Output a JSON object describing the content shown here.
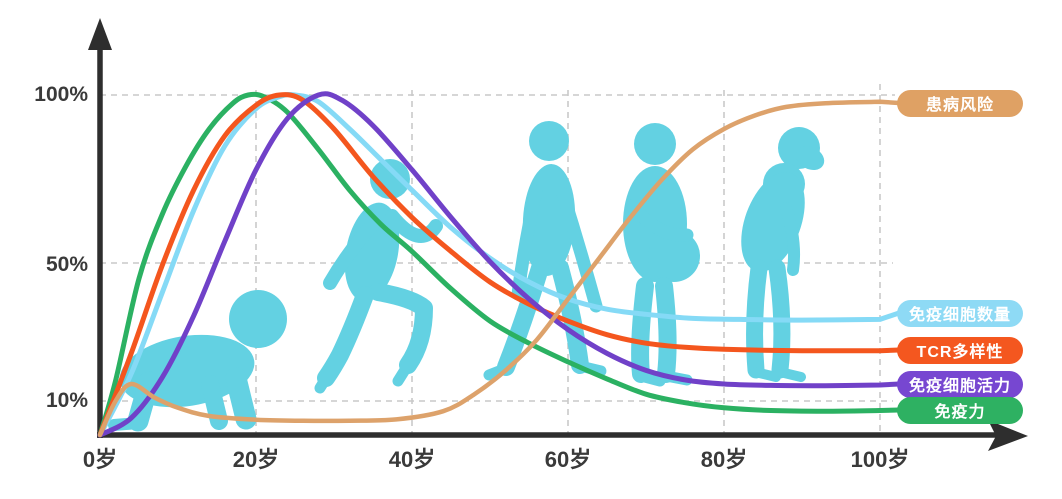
{
  "chart_data": {
    "type": "line",
    "title": "",
    "x_axis": {
      "range": [
        0,
        100
      ],
      "ticks": [
        {
          "label": "0岁",
          "age": 0
        },
        {
          "label": "20岁",
          "age": 20
        },
        {
          "label": "40岁",
          "age": 40
        },
        {
          "label": "60岁",
          "age": 60
        },
        {
          "label": "80岁",
          "age": 80
        },
        {
          "label": "100岁",
          "age": 100
        }
      ]
    },
    "y_axis": {
      "range": [
        0,
        100
      ],
      "ticks": [
        {
          "label": "100%",
          "pct": 100
        },
        {
          "label": "50%",
          "pct": 50
        },
        {
          "label": "10%",
          "pct": 10
        }
      ]
    },
    "grid": "dashed",
    "legend_position": "right",
    "series": [
      {
        "id": "immunity",
        "name": "免疫力",
        "color": "#2bb162",
        "stroke_width": 5,
        "points": [
          [
            0,
            0
          ],
          [
            2,
            16
          ],
          [
            5,
            46
          ],
          [
            8,
            65
          ],
          [
            11,
            79
          ],
          [
            14,
            90
          ],
          [
            17,
            97.5
          ],
          [
            19,
            100
          ],
          [
            21,
            99.5
          ],
          [
            24,
            95
          ],
          [
            28,
            84
          ],
          [
            32,
            72
          ],
          [
            36,
            62
          ],
          [
            40,
            54
          ],
          [
            45,
            43
          ],
          [
            50,
            33.5
          ],
          [
            55,
            27
          ],
          [
            60,
            21.5
          ],
          [
            65,
            16.5
          ],
          [
            70,
            12
          ],
          [
            75,
            9.5
          ],
          [
            80,
            8
          ],
          [
            86,
            7.2
          ],
          [
            93,
            7
          ],
          [
            100,
            7.2
          ]
        ]
      },
      {
        "id": "immune-cell-count",
        "name": "免疫细胞数量",
        "color": "#85daf6",
        "stroke_width": 5,
        "points": [
          [
            0,
            0
          ],
          [
            4,
            18
          ],
          [
            8,
            42
          ],
          [
            12,
            66
          ],
          [
            16,
            85
          ],
          [
            20,
            96
          ],
          [
            23,
            99.5
          ],
          [
            25,
            100
          ],
          [
            28,
            98
          ],
          [
            32,
            90
          ],
          [
            36,
            81
          ],
          [
            40,
            72
          ],
          [
            45,
            61
          ],
          [
            50,
            52
          ],
          [
            55,
            45
          ],
          [
            60,
            40
          ],
          [
            65,
            37
          ],
          [
            70,
            35.5
          ],
          [
            76,
            34.3
          ],
          [
            82,
            34
          ],
          [
            90,
            33.8
          ],
          [
            100,
            34
          ]
        ]
      },
      {
        "id": "tcr-diversity",
        "name": "TCR多样性",
        "color": "#f4561e",
        "stroke_width": 5,
        "points": [
          [
            0,
            0
          ],
          [
            4,
            24
          ],
          [
            8,
            50
          ],
          [
            12,
            72
          ],
          [
            16,
            88
          ],
          [
            20,
            97
          ],
          [
            23,
            100
          ],
          [
            26,
            98.5
          ],
          [
            30,
            90
          ],
          [
            35,
            76
          ],
          [
            40,
            64
          ],
          [
            45,
            54
          ],
          [
            50,
            45
          ],
          [
            55,
            38.5
          ],
          [
            60,
            33.5
          ],
          [
            65,
            29.5
          ],
          [
            70,
            27
          ],
          [
            75,
            25.8
          ],
          [
            80,
            25.2
          ],
          [
            90,
            24.8
          ],
          [
            100,
            24.8
          ]
        ]
      },
      {
        "id": "immune-cell-activity",
        "name": "免疫细胞活力",
        "color": "#7041c8",
        "stroke_width": 5,
        "points": [
          [
            0,
            0
          ],
          [
            4,
            5
          ],
          [
            8,
            17
          ],
          [
            12,
            35
          ],
          [
            16,
            57
          ],
          [
            20,
            78
          ],
          [
            24,
            93
          ],
          [
            28,
            100
          ],
          [
            31,
            98.5
          ],
          [
            35,
            91
          ],
          [
            40,
            78
          ],
          [
            45,
            64
          ],
          [
            50,
            51
          ],
          [
            55,
            40
          ],
          [
            60,
            31
          ],
          [
            65,
            24
          ],
          [
            70,
            19
          ],
          [
            75,
            16.2
          ],
          [
            80,
            15
          ],
          [
            86,
            14.6
          ],
          [
            93,
            14.5
          ],
          [
            100,
            14.7
          ]
        ]
      },
      {
        "id": "disease-risk",
        "name": "患病风险",
        "color": "#dda26b",
        "stroke_width": 4.5,
        "points": [
          [
            0,
            0
          ],
          [
            2,
            10
          ],
          [
            4,
            15
          ],
          [
            7,
            11
          ],
          [
            10,
            8
          ],
          [
            14,
            5.6
          ],
          [
            20,
            4.5
          ],
          [
            26,
            4.2
          ],
          [
            32,
            4.2
          ],
          [
            38,
            4.6
          ],
          [
            44,
            7
          ],
          [
            48,
            12
          ],
          [
            52,
            19
          ],
          [
            56,
            28
          ],
          [
            60,
            40
          ],
          [
            64,
            52
          ],
          [
            68,
            64
          ],
          [
            72,
            75
          ],
          [
            76,
            84
          ],
          [
            80,
            90
          ],
          [
            84,
            94
          ],
          [
            88,
            96.5
          ],
          [
            93,
            97.6
          ],
          [
            100,
            98
          ]
        ]
      }
    ]
  },
  "legend": [
    {
      "label": "患病风险",
      "color": "#dfa164",
      "y": 103
    },
    {
      "label": "免疫细胞数量",
      "color": "#8edaf5",
      "y": 313
    },
    {
      "label": "TCR多样性",
      "color": "#f4571f",
      "y": 350
    },
    {
      "label": "免疫细胞活力",
      "color": "#7747d1",
      "y": 384
    },
    {
      "label": "免疫力",
      "color": "#2eb162",
      "y": 410
    }
  ],
  "silhouettes": [
    {
      "name": "baby-crawling"
    },
    {
      "name": "child-running"
    },
    {
      "name": "adult-walking"
    },
    {
      "name": "middle-aged"
    },
    {
      "name": "elderly-hunched"
    }
  ],
  "colors": {
    "axis": "#2e2e2e",
    "grid": "#c9c9c9",
    "silhouette": "#63d1e2",
    "tick_text": "#3a3a3a",
    "legend_text": "#ffffff",
    "background": "#ffffff"
  }
}
